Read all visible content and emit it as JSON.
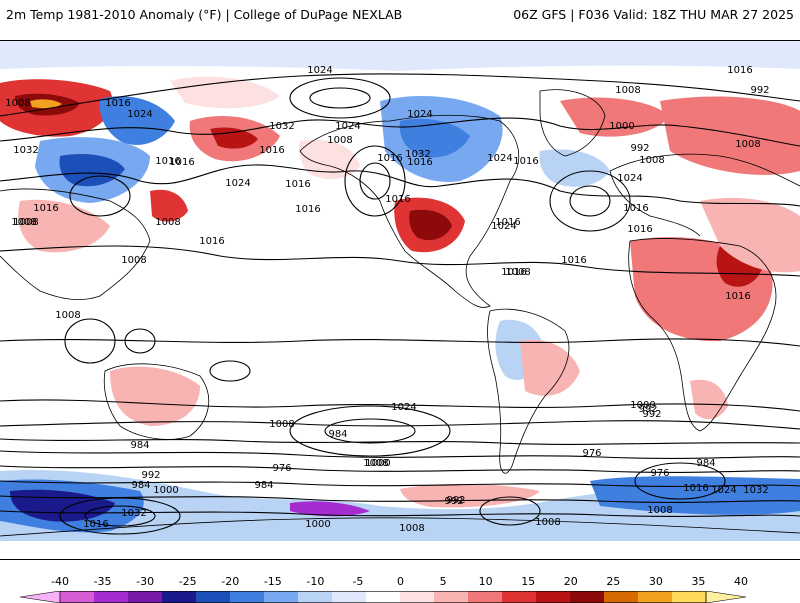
{
  "header": {
    "left_title": "2m Temp 1981-2010 Anomaly (°F) | College of DuPage NEXLAB",
    "right_title": "06Z GFS | F036 Valid: 18Z THU MAR 27 2025"
  },
  "map": {
    "contour_labels": [
      "1024",
      "1016",
      "992",
      "1008",
      "1016",
      "1024",
      "1032",
      "1016",
      "1024",
      "1032",
      "1024",
      "1008",
      "1032",
      "1016",
      "1016",
      "1000",
      "992",
      "1008",
      "1016",
      "1016",
      "1024",
      "1016",
      "1024",
      "1008",
      "1016",
      "1024",
      "1016",
      "1008",
      "1016",
      "1016",
      "1008",
      "1016",
      "1008",
      "1008",
      "1008",
      "1016",
      "1016",
      "1008",
      "1016",
      "1016",
      "1024",
      "1016",
      "1016",
      "1008",
      "992",
      "1024",
      "992",
      "1000",
      "984",
      "1008",
      "984",
      "1008",
      "976",
      "1000",
      "976",
      "984",
      "1032",
      "1016",
      "984",
      "992",
      "1016",
      "1024",
      "1032",
      "1000",
      "992",
      "984",
      "992",
      "976",
      "1008",
      "1008",
      "1000",
      "1008"
    ]
  },
  "colorbar": {
    "ticks": [
      "-40",
      "-35",
      "-30",
      "-25",
      "-20",
      "-15",
      "-10",
      "-5",
      "0",
      "5",
      "10",
      "15",
      "20",
      "25",
      "30",
      "35",
      "40"
    ],
    "colors": [
      "#f7b3f7",
      "#d55cd5",
      "#a52ccf",
      "#7a19a8",
      "#1a1a8c",
      "#1d4fb8",
      "#3f7fe0",
      "#78a8f0",
      "#b9d3f5",
      "#dfe9fb",
      "#ffffff",
      "#fde0e0",
      "#f8b3b3",
      "#f07878",
      "#e03434",
      "#b81414",
      "#8c0a0a",
      "#d46a00",
      "#f2a020",
      "#ffd95a",
      "#fff0a0"
    ]
  }
}
